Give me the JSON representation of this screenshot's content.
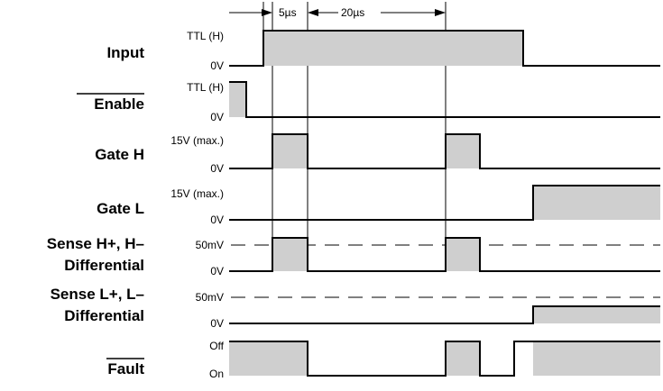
{
  "timing": {
    "first_interval": "5µs",
    "second_interval": "20µs"
  },
  "signals": [
    {
      "name": "Input",
      "high": "TTL (H)",
      "low": "0V"
    },
    {
      "name": "Enable",
      "high": "TTL (H)",
      "low": "0V",
      "overline": true
    },
    {
      "name": "Gate H",
      "high": "15V (max.)",
      "low": "0V"
    },
    {
      "name": "Gate L",
      "high": "15V (max.)",
      "low": "0V"
    },
    {
      "name_line1": "Sense H+, H–",
      "name_line2": "Differential",
      "high": "50mV",
      "low": "0V"
    },
    {
      "name_line1": "Sense L+, L–",
      "name_line2": "Differential",
      "high": "50mV",
      "low": "0V"
    },
    {
      "name": "Fault",
      "high": "Off",
      "low": "On",
      "overline": true
    }
  ]
}
